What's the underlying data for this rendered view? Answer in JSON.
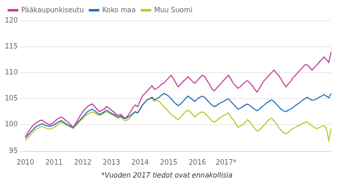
{
  "chart_data": {
    "type": "line",
    "subtitle": "*Vuoden 2017 tiedot ovat ennakollisia",
    "categories": [
      "2010",
      null,
      null,
      null,
      null,
      null,
      null,
      null,
      null,
      null,
      null,
      null,
      "2011",
      null,
      null,
      null,
      null,
      null,
      null,
      null,
      null,
      null,
      null,
      null,
      "2012",
      null,
      null,
      null,
      null,
      null,
      null,
      null,
      null,
      null,
      null,
      null,
      "2013",
      null,
      null,
      null,
      null,
      null,
      null,
      null,
      null,
      null,
      null,
      null,
      "2014",
      null,
      null,
      null,
      null,
      null,
      null,
      null,
      null,
      null,
      null,
      null,
      "2015",
      null,
      null,
      null,
      null,
      null,
      null,
      null,
      null,
      null,
      null,
      null,
      "2016",
      null,
      null,
      null,
      null,
      null,
      null,
      null,
      null,
      null,
      null,
      null,
      "2017*",
      null,
      null,
      null,
      null,
      null,
      null,
      null,
      null,
      null,
      null,
      null,
      null,
      null,
      null,
      null,
      null,
      null,
      null,
      null,
      null,
      null,
      null,
      null,
      null,
      null,
      null,
      null,
      null,
      null,
      null,
      null,
      null,
      null,
      null,
      null,
      null,
      null,
      null,
      null,
      null,
      null,
      null,
      null,
      null
    ],
    "series": [
      {
        "name": "Pääkaupunkiseutu",
        "color": "#c0399b",
        "values": [
          97.5,
          98.5,
          99.2,
          99.8,
          100.2,
          100.5,
          100.8,
          100.9,
          100.5,
          100.3,
          100.0,
          100.2,
          100.5,
          101.0,
          101.3,
          101.5,
          101.2,
          100.8,
          100.5,
          100.0,
          99.5,
          100.2,
          101.0,
          101.8,
          102.5,
          103.0,
          103.5,
          103.8,
          104.0,
          103.5,
          103.0,
          102.5,
          102.8,
          103.0,
          103.5,
          103.2,
          102.8,
          102.5,
          102.0,
          101.8,
          102.0,
          101.5,
          101.3,
          101.8,
          102.5,
          103.3,
          103.8,
          103.5,
          104.5,
          105.5,
          106.0,
          106.5,
          107.0,
          107.5,
          106.8,
          107.0,
          107.3,
          107.8,
          108.0,
          108.5,
          109.0,
          109.5,
          108.8,
          108.0,
          107.3,
          107.8,
          108.3,
          108.7,
          109.2,
          108.8,
          108.3,
          108.0,
          108.5,
          109.0,
          109.5,
          109.3,
          108.5,
          107.8,
          107.0,
          106.5,
          107.0,
          107.5,
          108.0,
          108.5,
          109.0,
          109.5,
          108.8,
          108.0,
          107.5,
          107.0,
          107.3,
          107.8,
          108.2,
          108.5,
          108.0,
          107.5,
          106.8,
          106.3,
          107.0,
          107.8,
          108.5,
          109.0,
          109.5,
          110.0,
          110.5,
          110.0,
          109.5,
          108.8,
          108.0,
          107.3,
          107.8,
          108.3,
          109.0,
          109.5,
          110.0,
          110.5,
          111.0,
          111.5,
          111.5,
          111.0,
          110.5,
          111.0,
          111.5,
          112.0,
          112.5,
          113.0,
          112.5,
          112.0,
          114.0
        ]
      },
      {
        "name": "Koko maa",
        "color": "#1f6eb5",
        "values": [
          97.5,
          98.0,
          98.5,
          99.0,
          99.5,
          99.8,
          100.0,
          100.2,
          100.0,
          99.8,
          99.7,
          99.8,
          100.0,
          100.3,
          100.6,
          100.8,
          100.5,
          100.2,
          100.0,
          99.7,
          99.5,
          100.0,
          100.5,
          101.0,
          101.5,
          102.0,
          102.5,
          102.8,
          103.0,
          102.7,
          102.3,
          102.0,
          102.2,
          102.5,
          102.8,
          102.5,
          102.2,
          102.0,
          101.7,
          101.5,
          101.7,
          101.3,
          101.2,
          101.5,
          101.8,
          102.2,
          102.5,
          102.3,
          103.0,
          103.8,
          104.3,
          104.8,
          105.0,
          105.3,
          104.8,
          105.0,
          105.3,
          105.7,
          106.0,
          105.8,
          105.5,
          105.0,
          104.5,
          104.0,
          103.7,
          104.0,
          104.5,
          105.0,
          105.5,
          105.2,
          104.8,
          104.5,
          105.0,
          105.3,
          105.5,
          105.3,
          104.8,
          104.3,
          103.8,
          103.5,
          103.7,
          104.0,
          104.3,
          104.5,
          104.8,
          105.0,
          104.5,
          104.0,
          103.5,
          103.0,
          103.2,
          103.5,
          103.8,
          104.0,
          103.7,
          103.3,
          103.0,
          102.7,
          103.0,
          103.5,
          103.8,
          104.2,
          104.5,
          104.8,
          104.5,
          104.0,
          103.5,
          103.0,
          102.7,
          102.5,
          102.8,
          103.0,
          103.3,
          103.7,
          104.0,
          104.3,
          104.7,
          105.0,
          105.3,
          105.0,
          104.7,
          104.8,
          105.0,
          105.3,
          105.5,
          105.8,
          105.5,
          105.2,
          106.0
        ]
      },
      {
        "name": "Muu Suomi",
        "color": "#b5c825",
        "values": [
          97.0,
          97.5,
          98.0,
          98.5,
          99.0,
          99.3,
          99.5,
          99.7,
          99.5,
          99.3,
          99.2,
          99.3,
          99.5,
          99.8,
          100.2,
          100.5,
          100.3,
          100.0,
          99.8,
          99.5,
          99.3,
          99.8,
          100.3,
          100.8,
          101.2,
          101.7,
          102.0,
          102.3,
          102.5,
          102.3,
          102.0,
          101.8,
          102.0,
          102.3,
          102.5,
          102.3,
          102.0,
          101.8,
          101.5,
          101.3,
          101.5,
          101.0,
          100.8,
          101.0,
          101.5,
          102.0,
          102.5,
          102.3,
          103.0,
          103.8,
          104.3,
          104.8,
          105.0,
          105.2,
          104.5,
          104.7,
          104.5,
          104.0,
          103.5,
          103.0,
          102.5,
          102.0,
          101.7,
          101.3,
          101.0,
          101.5,
          102.0,
          102.5,
          102.8,
          102.5,
          102.0,
          101.5,
          102.0,
          102.3,
          102.5,
          102.3,
          101.8,
          101.3,
          100.8,
          100.5,
          100.8,
          101.2,
          101.5,
          101.8,
          102.0,
          102.3,
          101.5,
          101.0,
          100.3,
          99.5,
          99.8,
          100.0,
          100.5,
          101.0,
          100.5,
          100.0,
          99.3,
          98.8,
          99.0,
          99.5,
          100.0,
          100.5,
          101.0,
          101.3,
          100.8,
          100.3,
          99.5,
          99.0,
          98.5,
          98.3,
          98.5,
          99.0,
          99.3,
          99.5,
          99.8,
          100.0,
          100.3,
          100.5,
          100.5,
          100.2,
          99.8,
          99.5,
          99.3,
          99.5,
          99.7,
          99.8,
          99.3,
          97.0,
          99.3
        ]
      }
    ],
    "ylim": [
      95,
      120
    ],
    "yticks": [
      95,
      100,
      105,
      110,
      115,
      120
    ],
    "grid": true,
    "legend": "upper left"
  }
}
